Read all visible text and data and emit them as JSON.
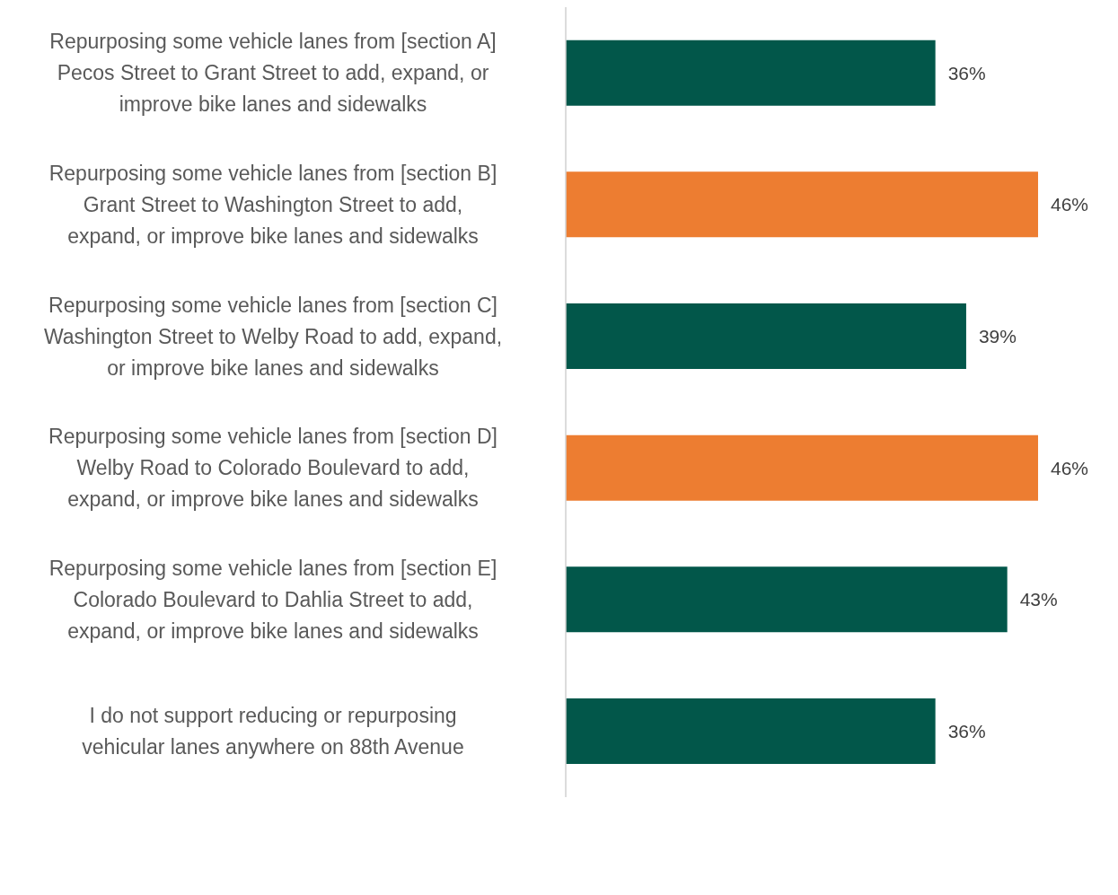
{
  "chart_data": {
    "type": "bar",
    "orientation": "horizontal",
    "categories": [
      "Repurposing some vehicle lanes from [section A] Pecos Street to Grant Street to add, expand, or improve bike lanes and sidewalks",
      "Repurposing some vehicle lanes from [section B] Grant Street to Washington Street to add, expand, or improve bike lanes and sidewalks",
      "Repurposing some vehicle lanes from [section C] Washington Street to Welby Road to add, expand, or improve bike lanes and sidewalks",
      "Repurposing some vehicle lanes from [section D] Welby Road to Colorado Boulevard to add, expand, or improve bike lanes and sidewalks",
      "Repurposing some vehicle lanes from [section E] Colorado Boulevard to Dahlia Street to add, expand, or improve bike lanes and sidewalks",
      "I do not support reducing or repurposing vehicular lanes anywhere on 88th Avenue"
    ],
    "values": [
      36,
      46,
      39,
      46,
      43,
      36
    ],
    "value_labels": [
      "36%",
      "46%",
      "39%",
      "46%",
      "43%",
      "36%"
    ],
    "colors": [
      "#02574a",
      "#ed7d31",
      "#02574a",
      "#ed7d31",
      "#02574a",
      "#02574a"
    ],
    "grid": false,
    "legend": false
  }
}
